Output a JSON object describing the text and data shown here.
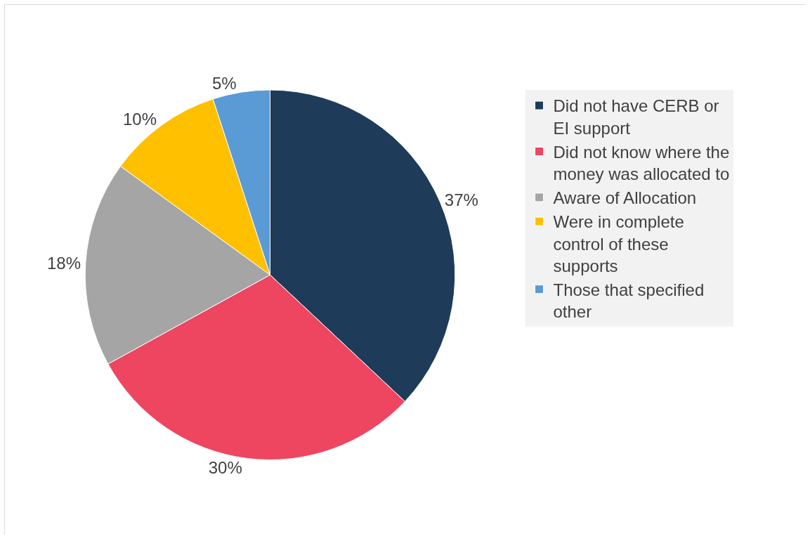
{
  "chart_data": {
    "type": "pie",
    "categories": [
      "Did not have CERB or EI support",
      "Did not know where the money was allocated to",
      "Aware of Allocation",
      "Were in complete control of these supports",
      "Those that specified other"
    ],
    "values": [
      37,
      30,
      18,
      10,
      5
    ],
    "value_labels": [
      "37%",
      "30%",
      "18%",
      "10%",
      "5%"
    ],
    "colors": [
      "#1f3b5a",
      "#ee4560",
      "#a5a5a5",
      "#ffc000",
      "#5b9bd5"
    ],
    "legend": "right"
  }
}
